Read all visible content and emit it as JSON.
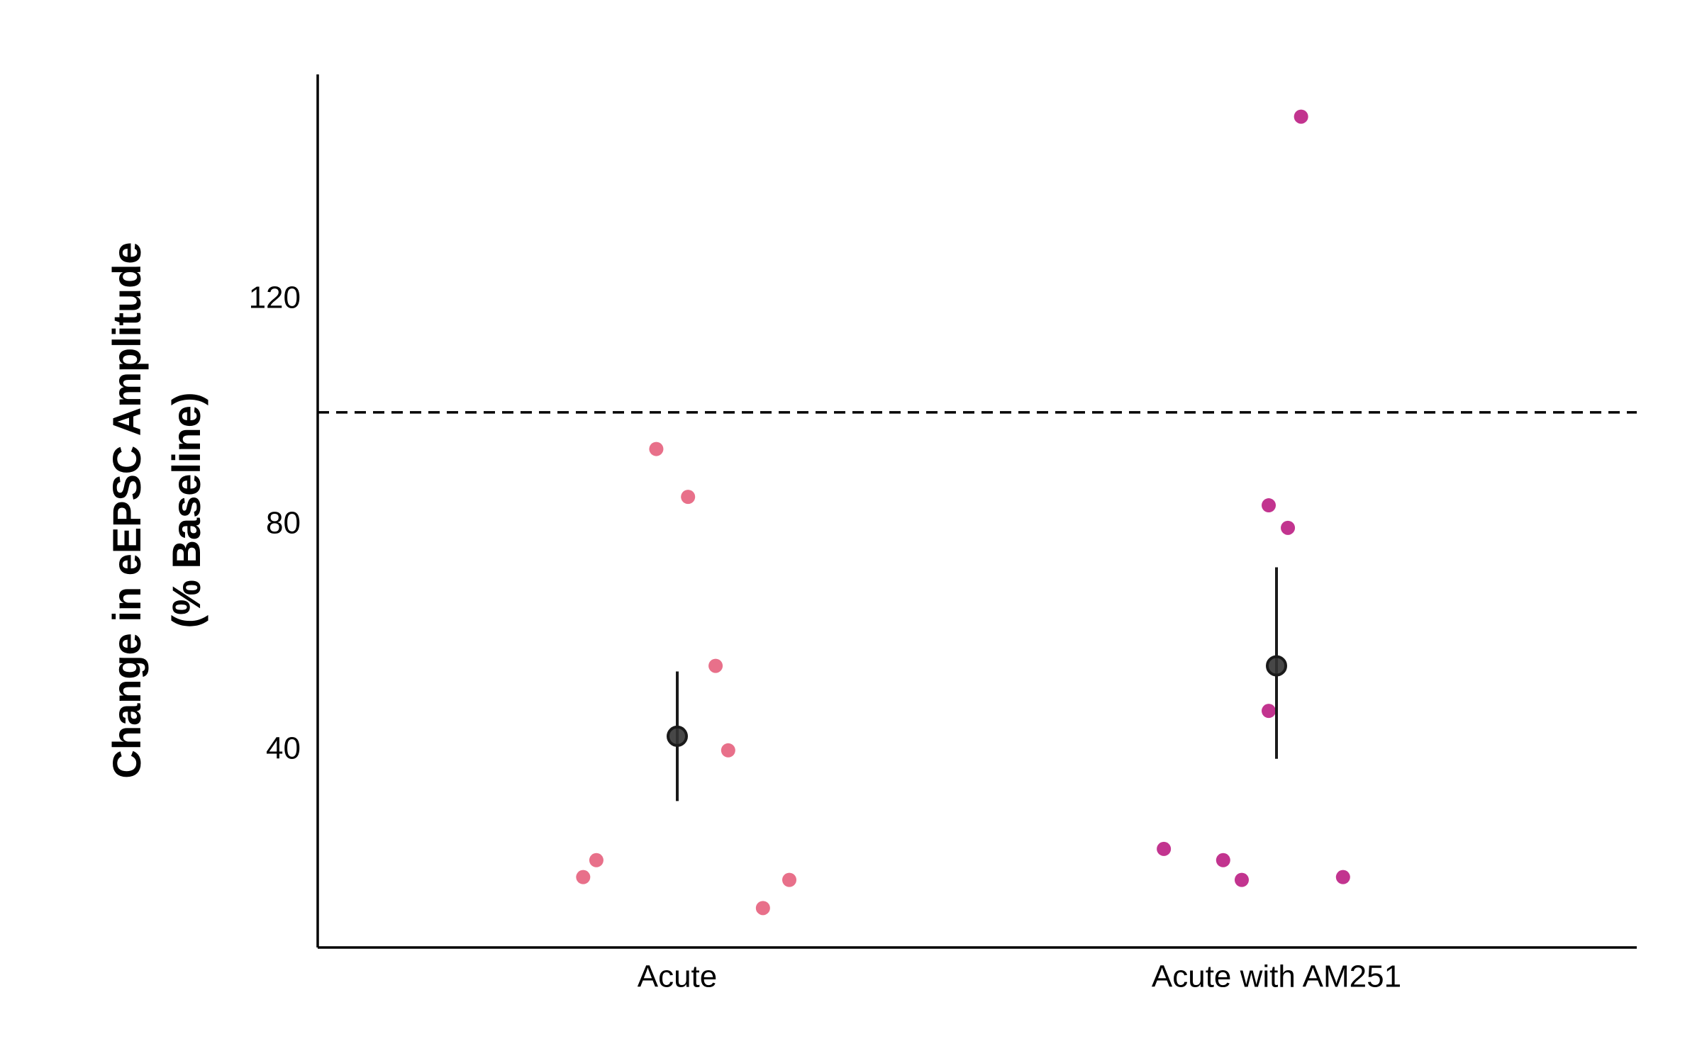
{
  "chart_data": {
    "type": "scatter",
    "title": "",
    "xlabel": "",
    "ylabel": [
      "Change in eEPSC Amplitude",
      "(% Baseline)"
    ],
    "categories": [
      "Acute",
      "Acute with AM251"
    ],
    "yticks": [
      40,
      80,
      120
    ],
    "ylim": [
      5,
      160
    ],
    "reference_line": {
      "y": 100,
      "style": "dashed",
      "color": "#000000"
    },
    "series": [
      {
        "name": "Acute",
        "color": "#E8708A",
        "points": [
          {
            "jitter": -0.157,
            "y": 17.5
          },
          {
            "jitter": -0.135,
            "y": 20.5
          },
          {
            "jitter": -0.035,
            "y": 93.5
          },
          {
            "jitter": 0.018,
            "y": 85.0
          },
          {
            "jitter": 0.064,
            "y": 55.0
          },
          {
            "jitter": 0.085,
            "y": 40.0
          },
          {
            "jitter": 0.143,
            "y": 12.0
          },
          {
            "jitter": 0.187,
            "y": 17.0
          }
        ],
        "summary": {
          "mean": 42.5,
          "lower": 31.0,
          "upper": 54.0
        }
      },
      {
        "name": "Acute with AM251",
        "color": "#C2348F",
        "points": [
          {
            "jitter": -0.188,
            "y": 22.5
          },
          {
            "jitter": -0.089,
            "y": 20.5
          },
          {
            "jitter": -0.058,
            "y": 17.0
          },
          {
            "jitter": -0.013,
            "y": 47.0
          },
          {
            "jitter": -0.013,
            "y": 83.5
          },
          {
            "jitter": 0.019,
            "y": 79.5
          },
          {
            "jitter": 0.041,
            "y": 152.5
          },
          {
            "jitter": 0.111,
            "y": 17.5
          }
        ],
        "summary": {
          "mean": 55.0,
          "lower": 38.5,
          "upper": 72.5
        }
      }
    ],
    "summary_color": "#1a1a1a"
  }
}
